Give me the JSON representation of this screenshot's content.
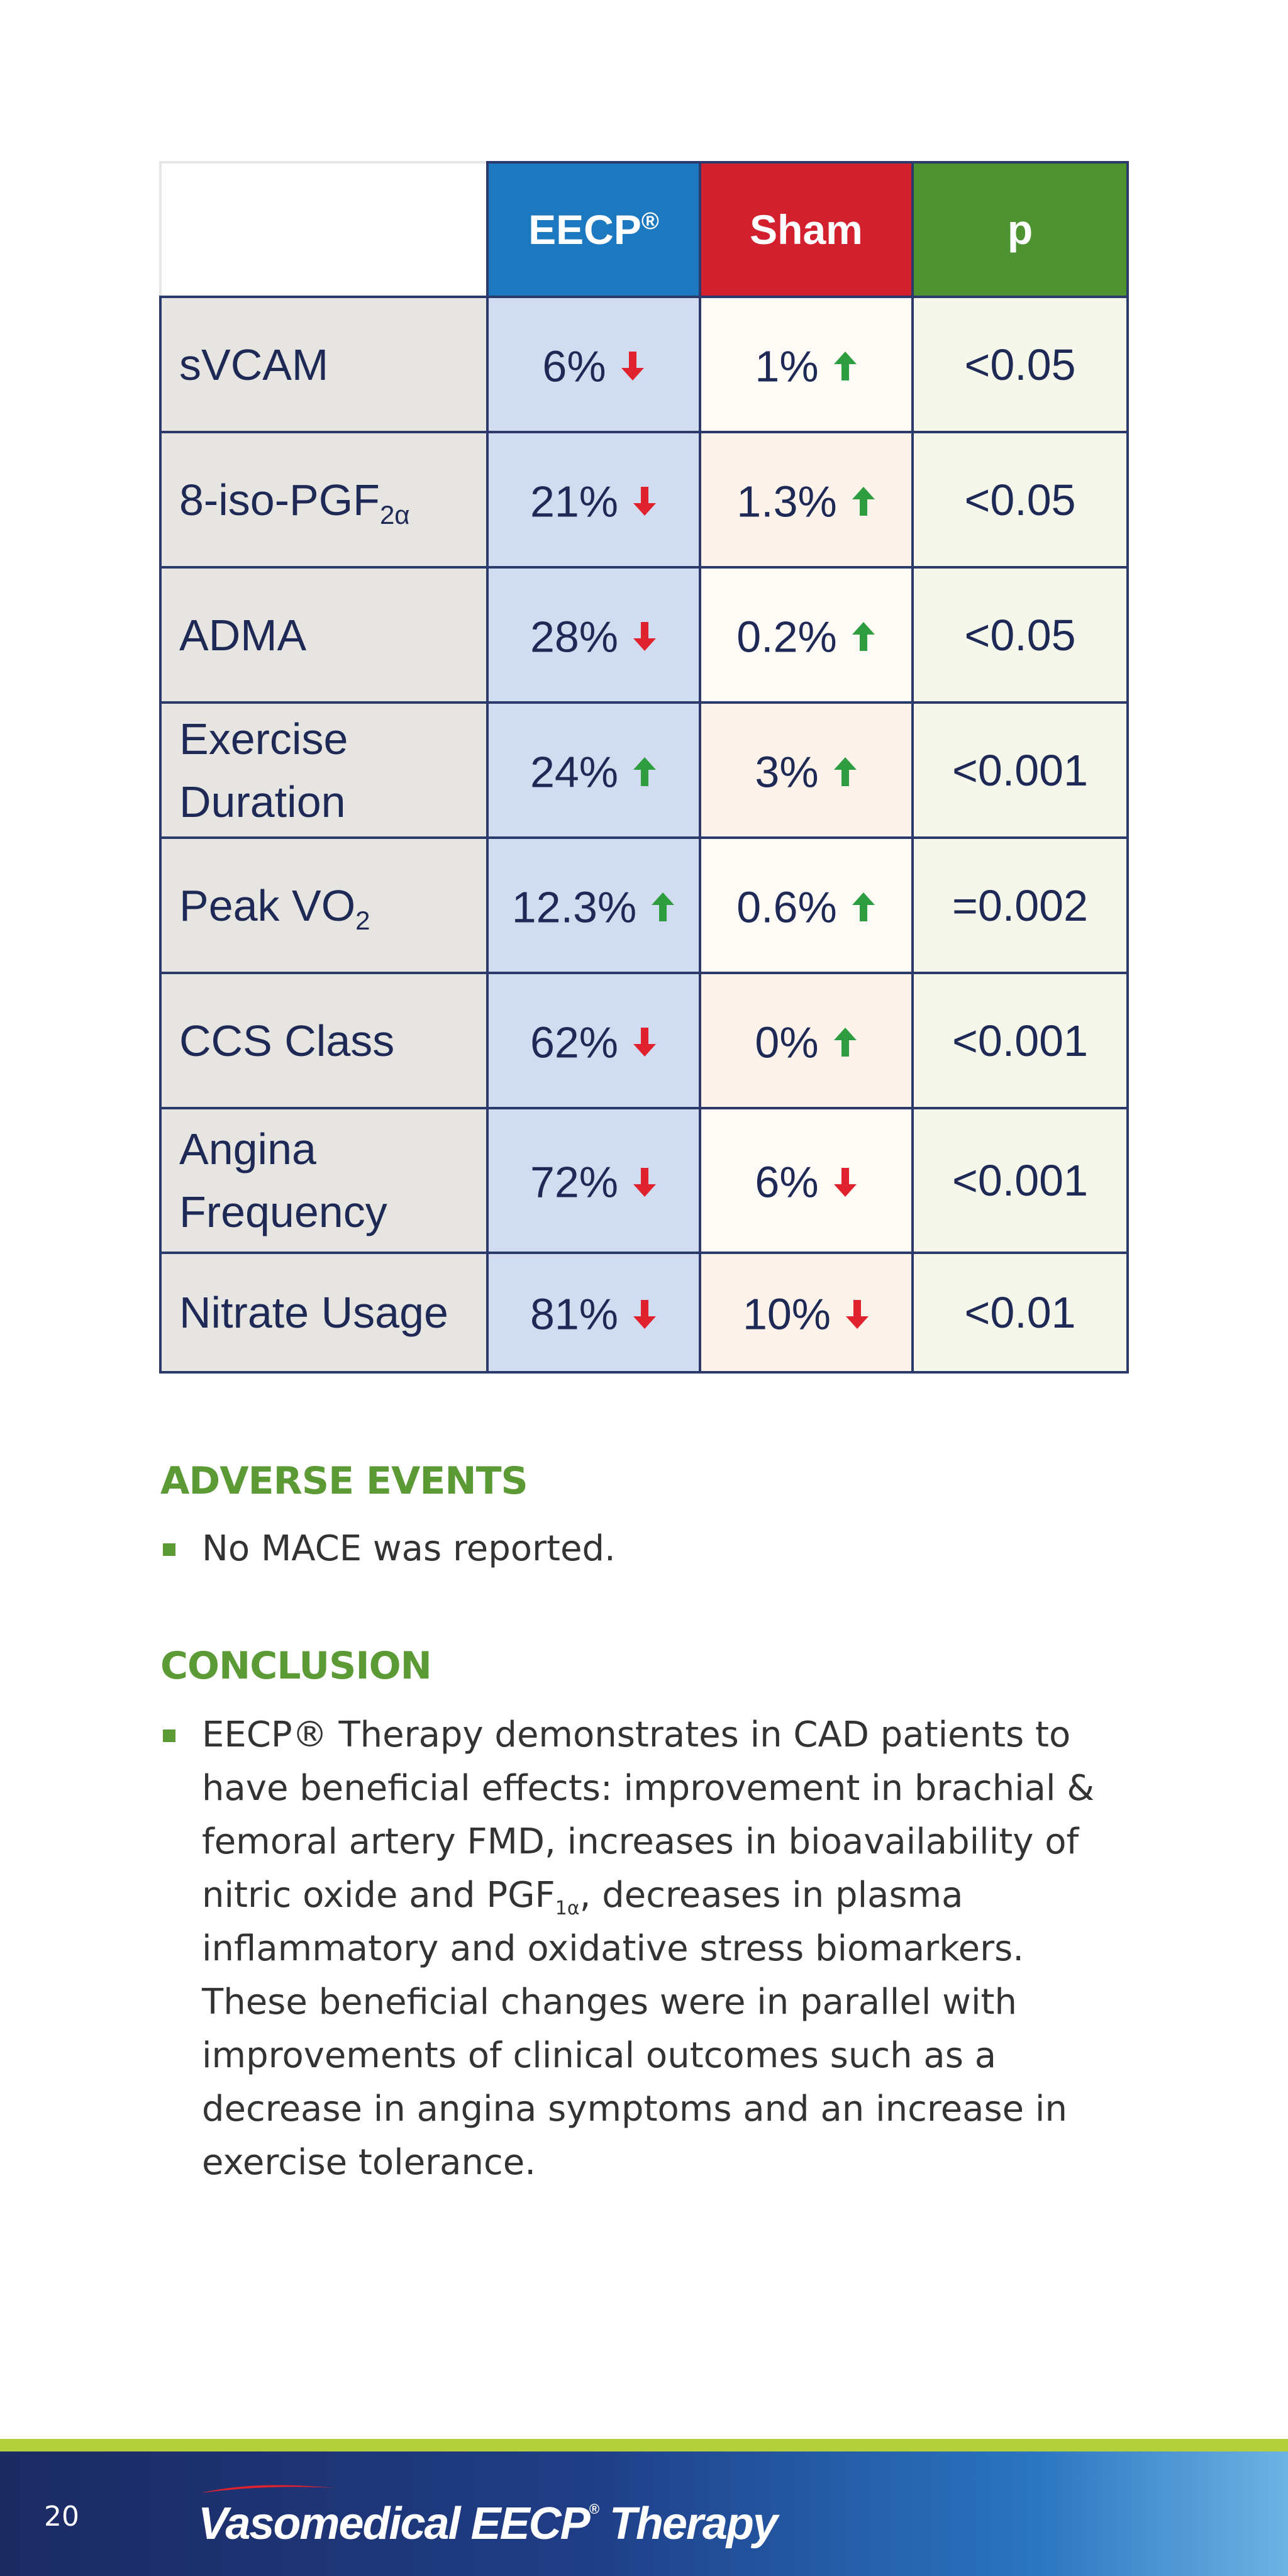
{
  "table": {
    "headers": {
      "eecp": "EECP",
      "eecp_reg": "®",
      "sham": "Sham",
      "p": "p"
    },
    "rows": [
      {
        "label": "sVCAM",
        "label_sub": "",
        "eecp": "6%",
        "eecp_dir": "down",
        "sham": "1%",
        "sham_dir": "up",
        "p": "<0.05"
      },
      {
        "label": "8-iso-PGF",
        "label_sub": "2α",
        "eecp": "21%",
        "eecp_dir": "down",
        "sham": "1.3%",
        "sham_dir": "up",
        "p": "<0.05"
      },
      {
        "label": "ADMA",
        "label_sub": "",
        "eecp": "28%",
        "eecp_dir": "down",
        "sham": "0.2%",
        "sham_dir": "up",
        "p": "<0.05"
      },
      {
        "label": "Exercise Duration",
        "label_sub": "",
        "eecp": "24%",
        "eecp_dir": "up",
        "sham": "3%",
        "sham_dir": "up",
        "p": "<0.001"
      },
      {
        "label": "Peak VO",
        "label_sub": "2",
        "eecp": "12.3%",
        "eecp_dir": "up",
        "sham": "0.6%",
        "sham_dir": "up",
        "p": "=0.002"
      },
      {
        "label": "CCS Class",
        "label_sub": "",
        "eecp": "62%",
        "eecp_dir": "down",
        "sham": "0%",
        "sham_dir": "up",
        "p": "<0.001"
      },
      {
        "label": "Angina Frequency",
        "label_sub": "",
        "eecp": "72%",
        "eecp_dir": "down",
        "sham": "6%",
        "sham_dir": "down",
        "p": "<0.001"
      },
      {
        "label": "Nitrate Usage",
        "label_sub": "",
        "eecp": "81%",
        "eecp_dir": "down",
        "sham": "10%",
        "sham_dir": "down",
        "p": "<0.01"
      }
    ]
  },
  "adverse_events": {
    "heading": "ADVERSE EVENTS",
    "bullets": [
      "No MACE was reported."
    ]
  },
  "conclusion": {
    "heading": "CONCLUSION",
    "text_before_sub": "EECP® Therapy demonstrates in CAD patients to have beneficial effects: improvement in brachial & femoral artery FMD, increases in bioavailability of nitric oxide and PGF",
    "subscript": "1α",
    "text_after_sub": ", decreases in plasma inflammatory and oxidative stress biomarkers. These beneficial changes were in parallel with improvements of clinical outcomes such as a decrease in angina symptoms and an increase in exercise tolerance."
  },
  "footer": {
    "page_number": "20",
    "brand_main": "Vasomedical EECP",
    "brand_reg": "®",
    "brand_tail": "Therapy"
  },
  "colors": {
    "eecp_header": "#1c79bf",
    "sham_header": "#d3202e",
    "p_header": "#4f9231",
    "arrow_up": "#2e9d3f",
    "arrow_down": "#e0222e",
    "heading_green": "#5b9a35"
  },
  "icons": {
    "up": "arrow-up-icon",
    "down": "arrow-down-icon"
  }
}
